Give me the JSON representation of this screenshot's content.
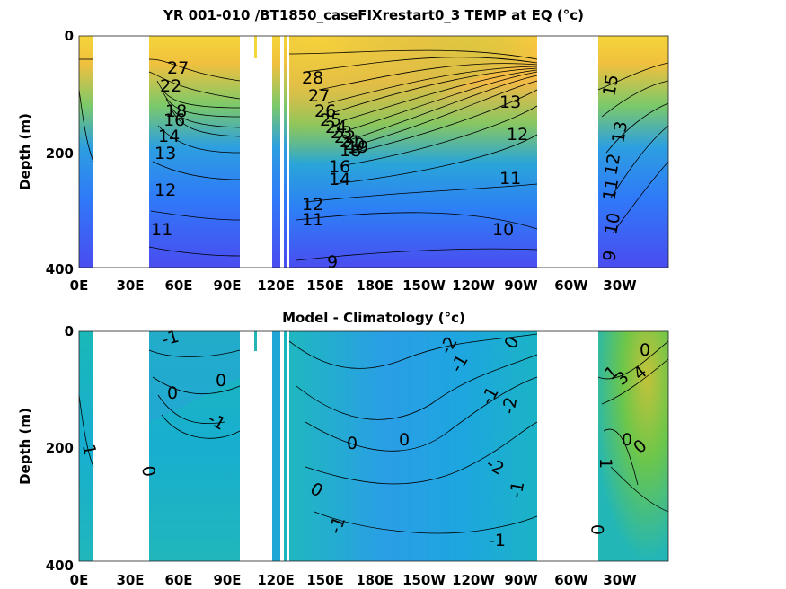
{
  "chart_data": [
    {
      "type": "contour",
      "title": "YR 001-010 /BT1850_caseFIXrestart0_3 TEMP at EQ (°c)",
      "ylabel": "Depth (m)",
      "ylim": [
        0,
        400
      ],
      "y_ticks": [
        "0",
        "200",
        "400"
      ],
      "x_ticks": [
        "0E",
        "30E",
        "60E",
        "90E",
        "120E",
        "150E",
        "180E",
        "150W",
        "120W",
        "90W",
        "60W",
        "30W"
      ],
      "contour_labels": [
        "28",
        "27",
        "26",
        "25",
        "24",
        "23",
        "22",
        "21",
        "20",
        "19",
        "18",
        "16",
        "14",
        "13",
        "12",
        "11",
        "10",
        "9"
      ],
      "colormap": [
        "#3e26a8",
        "#2a78f6",
        "#18b0c9",
        "#63c84a",
        "#d4bb3c",
        "#f9fb0e"
      ]
    },
    {
      "type": "contour",
      "title": "Model - Climatology (°c)",
      "ylabel": "Depth (m)",
      "ylim": [
        0,
        400
      ],
      "y_ticks": [
        "0",
        "200",
        "400"
      ],
      "x_ticks": [
        "0E",
        "30E",
        "60E",
        "90E",
        "120E",
        "150E",
        "180E",
        "150W",
        "120W",
        "90W",
        "60W",
        "30W"
      ],
      "contour_labels": [
        "-2",
        "-1",
        "0",
        "1",
        "2",
        "3",
        "4"
      ],
      "colormap": [
        "#3e26a8",
        "#2a78f6",
        "#18b0c9",
        "#63c84a",
        "#d4bb3c",
        "#f9fb0e"
      ]
    }
  ]
}
